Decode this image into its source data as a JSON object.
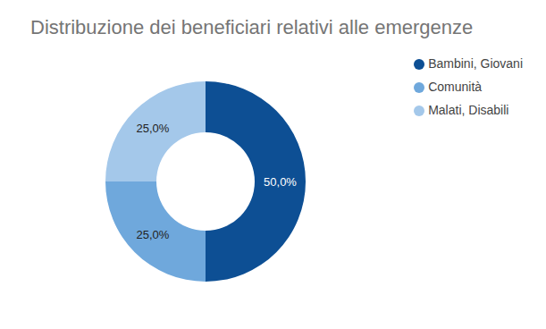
{
  "chart_data": {
    "type": "pie",
    "title": "Distribuzione dei beneficiari relativi alle emergenze",
    "categories": [
      "Bambini, Giovani",
      "Comunità",
      "Malati, Disabili"
    ],
    "values": [
      50,
      25,
      25
    ],
    "value_labels": [
      "50,0%",
      "25,0%",
      "25,0%"
    ],
    "colors": [
      "#0d4f94",
      "#6fa8dc",
      "#a4c8ea"
    ],
    "data_labels": true,
    "legend": "top right"
  }
}
